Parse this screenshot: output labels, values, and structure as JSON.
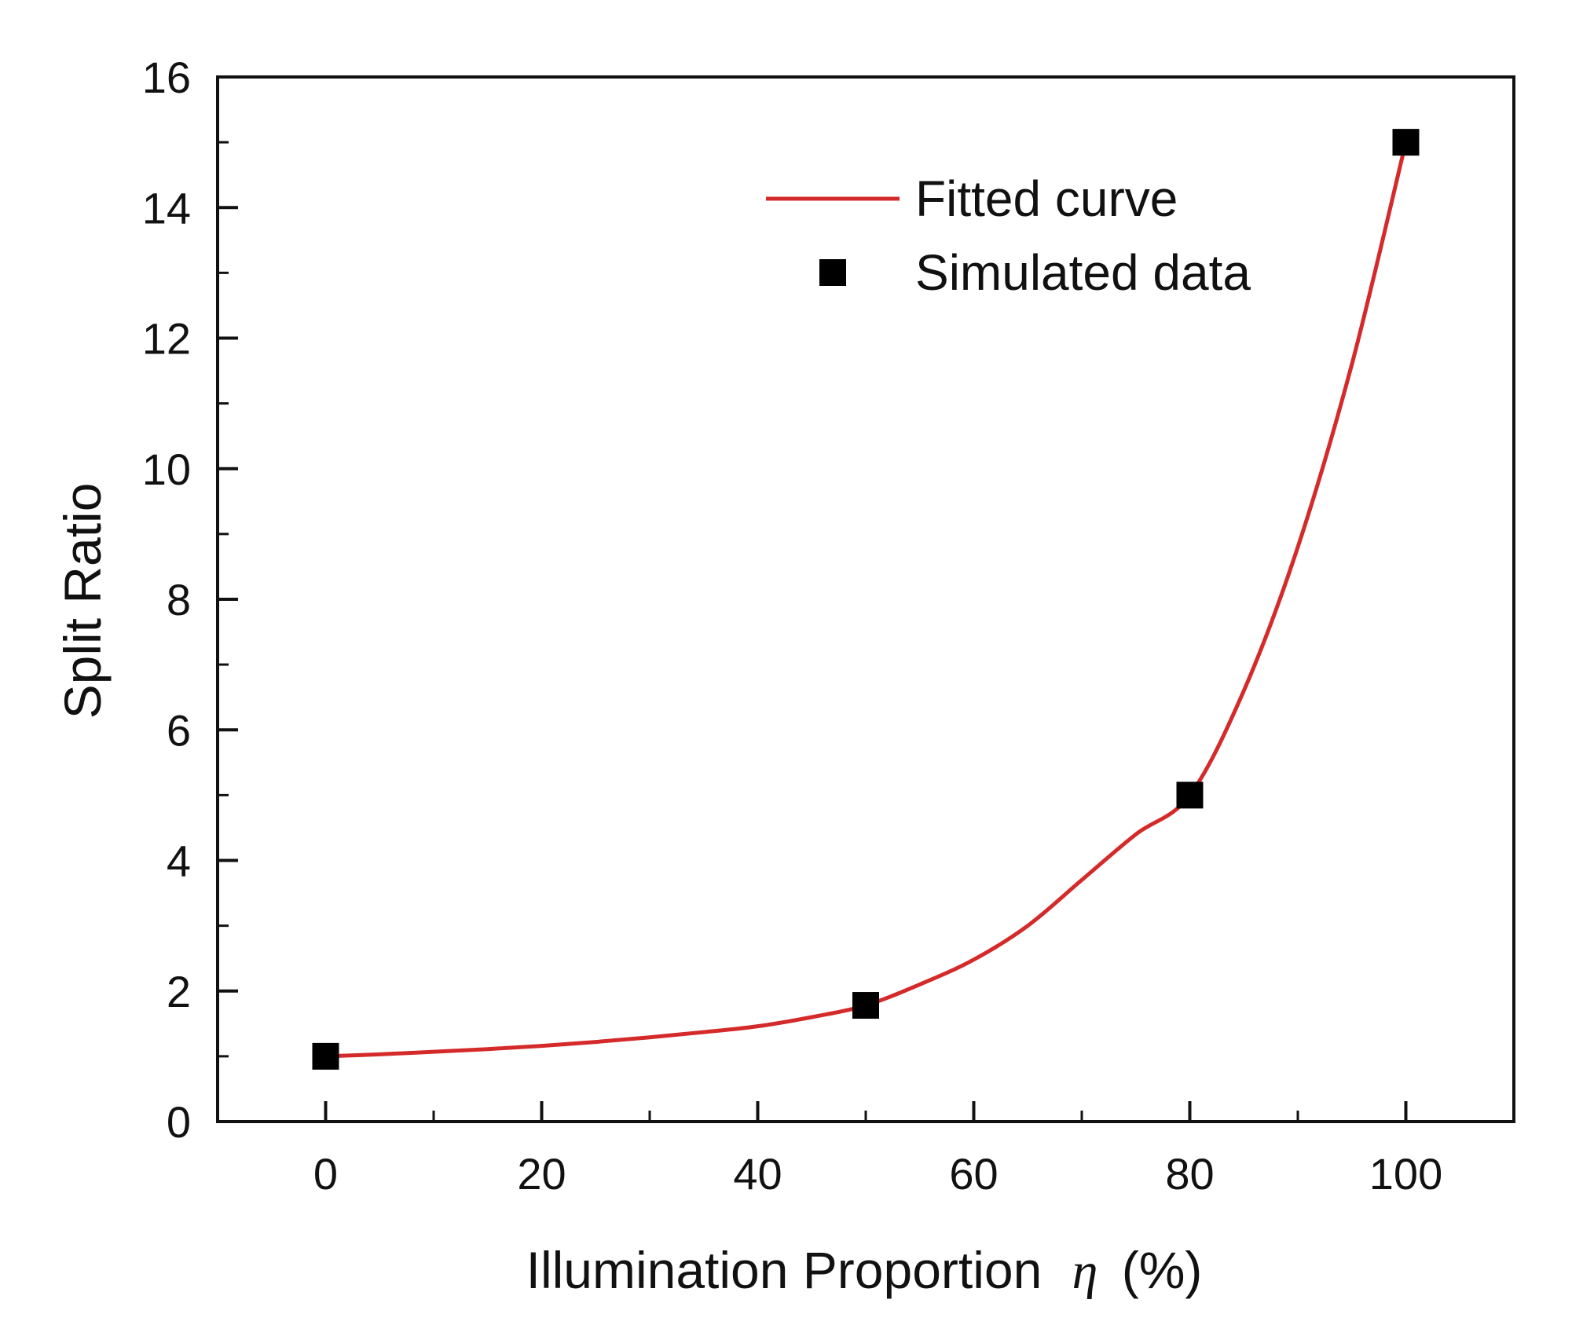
{
  "chart_data": {
    "type": "scatter",
    "title": "",
    "xlabel": "Illumination Proportion",
    "xlabel_symbol": "η",
    "xlabel_unit": "(%)",
    "ylabel": "Split Ratio",
    "xlim": [
      -10,
      110
    ],
    "ylim": [
      0,
      16
    ],
    "x_ticks": [
      0,
      20,
      40,
      60,
      80,
      100
    ],
    "x_minor_ticks": [
      10,
      30,
      50,
      70,
      90
    ],
    "y_ticks": [
      0,
      2,
      4,
      6,
      8,
      10,
      12,
      14,
      16
    ],
    "y_minor_ticks": [
      1,
      3,
      5,
      7,
      9,
      11,
      13,
      15
    ],
    "grid": false,
    "legend_position": "top-right",
    "series": [
      {
        "name": "Fitted curve",
        "kind": "line",
        "color": "#d42a2a",
        "x": [
          0,
          5,
          10,
          15,
          20,
          25,
          30,
          35,
          40,
          45,
          50,
          55,
          60,
          65,
          70,
          75,
          80,
          85,
          90,
          95,
          100
        ],
        "y": [
          1.0,
          1.03,
          1.07,
          1.11,
          1.16,
          1.22,
          1.29,
          1.37,
          1.46,
          1.6,
          1.78,
          2.1,
          2.48,
          3.0,
          3.7,
          4.4,
          5.0,
          6.6,
          8.8,
          11.6,
          15.0
        ]
      },
      {
        "name": "Simulated data",
        "kind": "scatter",
        "marker": "square",
        "color": "#000000",
        "x": [
          0,
          50,
          80,
          100
        ],
        "y": [
          1.0,
          1.78,
          5.0,
          15.0
        ]
      }
    ]
  }
}
